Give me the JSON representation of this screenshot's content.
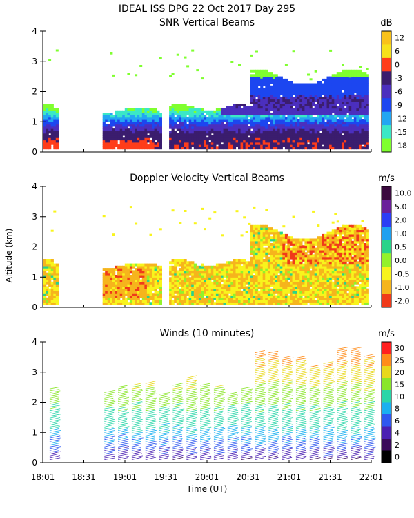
{
  "header": {
    "title": "IDEAL ISS DPG  22 Oct 2017 Day 295"
  },
  "x_axis": {
    "tick_labels": [
      "18:01",
      "18:31",
      "19:01",
      "19:31",
      "20:01",
      "20:31",
      "21:01",
      "21:31",
      "22:01"
    ],
    "label": "Time (UT)",
    "range_minutes": [
      0,
      240
    ]
  },
  "y_axis": {
    "label": "Altitude (km)",
    "tick_labels": [
      "0",
      "1",
      "2",
      "3",
      "4"
    ],
    "range_km": [
      0,
      4
    ]
  },
  "data_gaps_minutes": [
    [
      10,
      42
    ],
    [
      86,
      92
    ]
  ],
  "chart_data": [
    {
      "type": "heatmap",
      "title": "SNR Vertical Beams",
      "units": "dB",
      "xlabel": "",
      "ylabel": "",
      "colorbar": {
        "labels": [
          "12",
          "6",
          "0",
          "-3",
          "-6",
          "-9",
          "-12",
          "-15",
          "-18"
        ],
        "colors": [
          "#f9c21a",
          "#f7e21b",
          "#ff3d1a",
          "#3b1d6e",
          "#4b2fbe",
          "#1c46f0",
          "#23a6f2",
          "#3be8c6",
          "#7fff2f"
        ]
      }
    },
    {
      "type": "heatmap",
      "title": "Doppler Velocity Vertical Beams",
      "units": "m/s",
      "xlabel": "",
      "ylabel": "Altitude (km)",
      "colorbar": {
        "labels": [
          "10.0",
          "5.0",
          "2.0",
          "1.0",
          "0.5",
          "0.0",
          "-0.5",
          "-1.0",
          "-2.0"
        ],
        "colors": [
          "#3b0a3f",
          "#6a1f9a",
          "#2b3df5",
          "#1ea0f0",
          "#29d38a",
          "#93f22b",
          "#f8f41c",
          "#f6b51c",
          "#f03a1a"
        ]
      }
    },
    {
      "type": "scatter",
      "title": "Winds (10 minutes)",
      "units": "m/s",
      "xlabel": "Time (UT)",
      "ylabel": "",
      "colorbar": {
        "labels": [
          "30",
          "25",
          "20",
          "15",
          "10",
          "8",
          "6",
          "4",
          "2",
          "0"
        ],
        "colors": [
          "#ff2020",
          "#ff8c1a",
          "#e8d81c",
          "#8ae62a",
          "#2ad6a8",
          "#1ab0f0",
          "#2f58f0",
          "#4a1fb2",
          "#3a0a5a",
          "#000000"
        ]
      }
    }
  ]
}
